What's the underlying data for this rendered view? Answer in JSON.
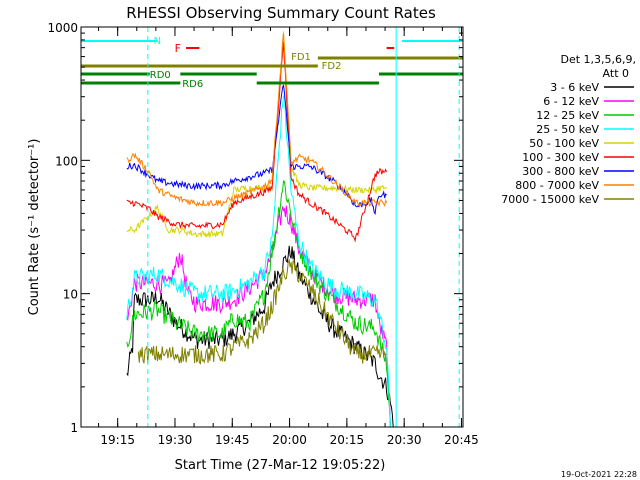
{
  "chart_data": {
    "type": "line",
    "title": "RHESSI Observing Summary Count Rates",
    "xlabel": "Start Time (27-Mar-12 19:05:22)",
    "ylabel": "Count Rate (s⁻¹ detector⁻¹)",
    "yscale": "log",
    "ylim": [
      1,
      1000
    ],
    "xlim_minutes": [
      0,
      100
    ],
    "x_start_time": "19:05:22",
    "x_ticks": [
      {
        "label": "19:15",
        "minute": 9.6
      },
      {
        "label": "19:30",
        "minute": 24.6
      },
      {
        "label": "19:45",
        "minute": 39.6
      },
      {
        "label": "20:00",
        "minute": 54.6
      },
      {
        "label": "20:15",
        "minute": 69.6
      },
      {
        "label": "20:30",
        "minute": 84.6
      },
      {
        "label": "20:45",
        "minute": 99.6
      }
    ],
    "y_ticks": [
      {
        "label": "1",
        "value": 1
      },
      {
        "label": "10",
        "value": 10
      },
      {
        "label": "100",
        "value": 100
      },
      {
        "label": "1000",
        "value": 1000
      }
    ],
    "legend_header": [
      "Det 1,3,5,6,9,",
      "Att 0"
    ],
    "legend_position": "right",
    "series": [
      {
        "name": "3 - 6 keV",
        "color": "#000000",
        "x": [
          12,
          13.5,
          14,
          19,
          20,
          25,
          30,
          37,
          40,
          44,
          48,
          50,
          53,
          55,
          57,
          60,
          63,
          66,
          72,
          77,
          78,
          80,
          81,
          82
        ],
        "y": [
          2.4,
          4,
          9,
          9,
          9.5,
          6,
          4.5,
          4.5,
          5,
          6,
          8,
          12,
          17,
          21,
          14,
          10,
          7,
          5.5,
          4,
          3,
          2.5,
          2,
          1.5,
          1
        ]
      },
      {
        "name": "6 - 12 keV",
        "color": "#ff00ff",
        "x": [
          12,
          14,
          20,
          23,
          26,
          28,
          30,
          37,
          40,
          44,
          48,
          50,
          53,
          55,
          57,
          60,
          63,
          66,
          72,
          77,
          78,
          80,
          81
        ],
        "y": [
          6,
          12,
          12,
          11.5,
          20,
          10,
          8.5,
          8.5,
          9,
          11,
          14,
          20,
          45,
          35,
          22,
          15,
          12,
          10,
          9,
          9,
          6,
          4,
          1
        ]
      },
      {
        "name": "12 - 25 keV",
        "color": "#00cc00",
        "x": [
          12,
          14,
          20,
          25,
          30,
          37,
          40,
          44,
          48,
          50,
          53,
          55,
          57,
          60,
          63,
          66,
          72,
          77,
          78,
          80,
          81
        ],
        "y": [
          4,
          7,
          7.5,
          6,
          5,
          5,
          6.5,
          6,
          10,
          20,
          70,
          40,
          22,
          15,
          11,
          9,
          6,
          5.5,
          4.5,
          3,
          1
        ]
      },
      {
        "name": "25 - 50 keV",
        "color": "#00ffff",
        "x": [
          12,
          14,
          20,
          25,
          30,
          37,
          40,
          44,
          48,
          50,
          53,
          55,
          57,
          60,
          63,
          66,
          72,
          77,
          78,
          80,
          81
        ],
        "y": [
          7,
          13,
          14,
          12,
          10,
          10,
          10.5,
          12,
          15,
          25,
          330,
          60,
          25,
          16,
          13,
          11,
          10,
          9,
          7,
          4,
          1
        ]
      },
      {
        "name": "50 - 100 keV",
        "color": "#d4d400",
        "x": [
          12,
          14,
          20,
          23,
          26,
          30,
          37,
          40,
          44,
          48,
          50,
          53,
          55,
          57,
          60,
          63,
          66,
          72,
          77,
          78,
          80
        ],
        "y": [
          30,
          30,
          44,
          30,
          30,
          28,
          28,
          60,
          62,
          62,
          63,
          930,
          90,
          66,
          62,
          62,
          62,
          60,
          60,
          62,
          62
        ]
      },
      {
        "name": "100 - 300 keV",
        "color": "#ff0000",
        "x": [
          12,
          14,
          18,
          20,
          25,
          30,
          37,
          40,
          44,
          48,
          50,
          53,
          55,
          57,
          60,
          63,
          66,
          72,
          77,
          78,
          80
        ],
        "y": [
          48,
          48,
          43,
          38,
          33,
          32,
          33,
          48,
          53,
          58,
          62,
          780,
          75,
          56,
          48,
          42,
          36,
          26,
          78,
          82,
          82
        ]
      },
      {
        "name": "300 - 800 keV",
        "color": "#0000ff",
        "x": [
          12,
          14,
          20,
          25,
          30,
          37,
          40,
          44,
          48,
          50,
          53,
          55,
          57,
          60,
          63,
          66,
          70,
          72,
          76,
          77,
          78,
          80
        ],
        "y": [
          90,
          92,
          70,
          66,
          64,
          65,
          70,
          75,
          80,
          85,
          380,
          90,
          90,
          90,
          80,
          70,
          55,
          45,
          50,
          40,
          55,
          55
        ]
      },
      {
        "name": "800 - 7000 keV",
        "color": "#ff8000",
        "x": [
          12,
          14,
          18,
          20,
          25,
          30,
          37,
          40,
          44,
          48,
          50,
          53,
          55,
          57,
          60,
          63,
          66,
          70,
          72,
          77,
          78,
          80
        ],
        "y": [
          100,
          110,
          80,
          60,
          52,
          48,
          48,
          52,
          57,
          64,
          72,
          900,
          95,
          105,
          100,
          85,
          70,
          55,
          48,
          48,
          48,
          48
        ]
      },
      {
        "name": "7000 - 15000 keV",
        "color": "#808000",
        "x": [
          15,
          20,
          25,
          30,
          37,
          40,
          44,
          48,
          50,
          53,
          55,
          57,
          60,
          63,
          66,
          72,
          77,
          78,
          80
        ],
        "y": [
          3.5,
          3.5,
          3.5,
          3.5,
          3.5,
          4,
          4.5,
          6,
          8,
          14,
          16,
          14,
          11,
          8,
          6,
          3.5,
          3.5,
          3.5,
          3.5
        ]
      }
    ],
    "annotations": [
      {
        "label": "N",
        "color": "#00ffff"
      },
      {
        "label": "F",
        "color": "#ff0000"
      },
      {
        "label": "FD1",
        "color": "#808000"
      },
      {
        "label": "FD2",
        "color": "#808000"
      },
      {
        "label": "RD0",
        "color": "#008000"
      },
      {
        "label": "RD6",
        "color": "#008000"
      }
    ]
  },
  "footer_timestamp": "19-Oct-2021 22:28"
}
